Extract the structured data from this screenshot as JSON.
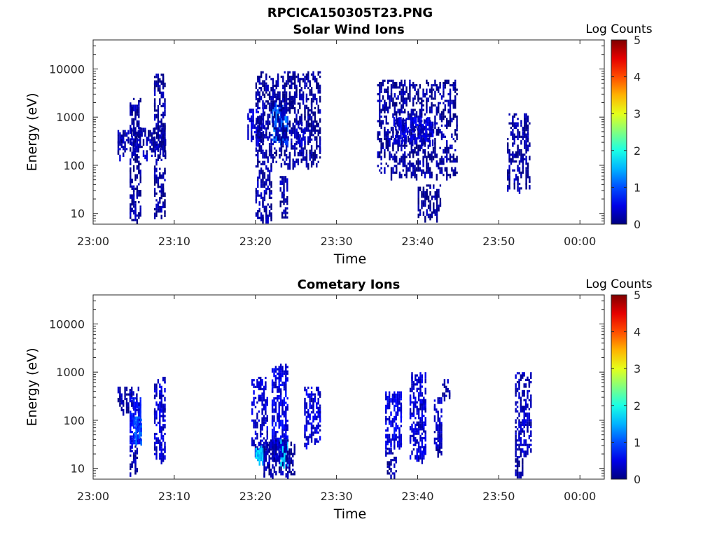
{
  "figure": {
    "title": "RPCICA150305T23.PNG"
  },
  "chart_data": [
    {
      "type": "heatmap",
      "title": "Solar Wind Ions",
      "xlabel": "Time",
      "ylabel": "Energy (eV)",
      "x_ticks": [
        "23:00",
        "23:10",
        "23:20",
        "23:30",
        "23:40",
        "23:50",
        "00:00"
      ],
      "x_range_min": [
        0,
        63
      ],
      "y_scale": "log",
      "y_ticks": [
        10,
        100,
        1000,
        10000
      ],
      "y_tick_labels": [
        "10",
        "100",
        "1000",
        "10000"
      ],
      "y_range": [
        6,
        40000
      ],
      "colorbar": {
        "label": "Log Counts",
        "range": [
          0,
          5
        ],
        "ticks": [
          "0",
          "1",
          "2",
          "3",
          "4",
          "5"
        ]
      },
      "blobs": [
        {
          "t": [
            3,
            9
          ],
          "e": [
            150,
            600
          ],
          "level": 0.2
        },
        {
          "t": [
            4.5,
            6
          ],
          "e": [
            7,
            2500
          ],
          "level": 0.15
        },
        {
          "t": [
            7.5,
            9
          ],
          "e": [
            8,
            8000
          ],
          "level": 0.15
        },
        {
          "t": [
            19,
            21
          ],
          "e": [
            300,
            1500
          ],
          "level": 0.4
        },
        {
          "t": [
            22,
            24
          ],
          "e": [
            300,
            2000
          ],
          "level": 1.1
        },
        {
          "t": [
            20,
            28
          ],
          "e": [
            100,
            9000
          ],
          "level": 0.15
        },
        {
          "t": [
            20,
            22
          ],
          "e": [
            8,
            100
          ],
          "level": 0.2
        },
        {
          "t": [
            23,
            24
          ],
          "e": [
            8,
            60
          ],
          "level": 0.2
        },
        {
          "t": [
            25,
            26
          ],
          "e": [
            300,
            800
          ],
          "level": 0.4
        },
        {
          "t": [
            35,
            45
          ],
          "e": [
            60,
            6000
          ],
          "level": 0.15
        },
        {
          "t": [
            37,
            42
          ],
          "e": [
            300,
            1000
          ],
          "level": 0.4
        },
        {
          "t": [
            40,
            43
          ],
          "e": [
            8,
            40
          ],
          "level": 0.1
        },
        {
          "t": [
            51,
            54
          ],
          "e": [
            30,
            1200
          ],
          "level": 0.15
        }
      ]
    },
    {
      "type": "heatmap",
      "title": "Cometary Ions",
      "xlabel": "Time",
      "ylabel": "Energy (eV)",
      "x_ticks": [
        "23:00",
        "23:10",
        "23:20",
        "23:30",
        "23:40",
        "23:50",
        "00:00"
      ],
      "x_range_min": [
        0,
        63
      ],
      "y_scale": "log",
      "y_ticks": [
        10,
        100,
        1000,
        10000
      ],
      "y_tick_labels": [
        "10",
        "100",
        "1000",
        "10000"
      ],
      "y_range": [
        6,
        40000
      ],
      "colorbar": {
        "label": "Log Counts",
        "range": [
          0,
          5
        ],
        "ticks": [
          "0",
          "1",
          "2",
          "3",
          "4",
          "5"
        ]
      },
      "blobs": [
        {
          "t": [
            3,
            6
          ],
          "e": [
            150,
            500
          ],
          "level": 0.2
        },
        {
          "t": [
            4.5,
            6
          ],
          "e": [
            30,
            300
          ],
          "level": 0.6
        },
        {
          "t": [
            5,
            6
          ],
          "e": [
            30,
            120
          ],
          "level": 1.0
        },
        {
          "t": [
            7.5,
            9
          ],
          "e": [
            15,
            800
          ],
          "level": 0.4
        },
        {
          "t": [
            4.5,
            5.5
          ],
          "e": [
            7,
            30
          ],
          "level": 0.2
        },
        {
          "t": [
            19.5,
            21.5
          ],
          "e": [
            20,
            800
          ],
          "level": 0.4
        },
        {
          "t": [
            20,
            21
          ],
          "e": [
            12,
            30
          ],
          "level": 1.6
        },
        {
          "t": [
            22,
            24
          ],
          "e": [
            15,
            1500
          ],
          "level": 0.5
        },
        {
          "t": [
            23,
            24
          ],
          "e": [
            12,
            40
          ],
          "level": 1.6
        },
        {
          "t": [
            21,
            25
          ],
          "e": [
            7,
            40
          ],
          "level": 0.2
        },
        {
          "t": [
            26,
            28
          ],
          "e": [
            30,
            500
          ],
          "level": 0.4
        },
        {
          "t": [
            36,
            38
          ],
          "e": [
            30,
            400
          ],
          "level": 0.5
        },
        {
          "t": [
            36,
            37.5
          ],
          "e": [
            7,
            30
          ],
          "level": 0.2
        },
        {
          "t": [
            39,
            41
          ],
          "e": [
            15,
            1000
          ],
          "level": 0.4
        },
        {
          "t": [
            42,
            43
          ],
          "e": [
            20,
            300
          ],
          "level": 0.3
        },
        {
          "t": [
            43,
            44
          ],
          "e": [
            300,
            800
          ],
          "level": 0.2
        },
        {
          "t": [
            52,
            54
          ],
          "e": [
            20,
            1000
          ],
          "level": 0.3
        },
        {
          "t": [
            52,
            53
          ],
          "e": [
            7,
            25
          ],
          "level": 0.2
        }
      ]
    }
  ]
}
